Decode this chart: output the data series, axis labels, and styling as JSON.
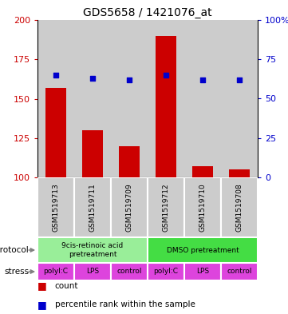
{
  "title": "GDS5658 / 1421076_at",
  "samples": [
    "GSM1519713",
    "GSM1519711",
    "GSM1519709",
    "GSM1519712",
    "GSM1519710",
    "GSM1519708"
  ],
  "bar_values": [
    157,
    130,
    120,
    190,
    107,
    105
  ],
  "bar_base": 100,
  "dot_values": [
    65,
    63,
    62,
    65,
    62,
    62
  ],
  "ylim_left": [
    100,
    200
  ],
  "ylim_right": [
    0,
    100
  ],
  "yticks_left": [
    100,
    125,
    150,
    175,
    200
  ],
  "yticks_right": [
    0,
    25,
    50,
    75,
    100
  ],
  "bar_color": "#cc0000",
  "dot_color": "#0000cc",
  "bar_width": 0.55,
  "protocol_labels": [
    "9cis-retinoic acid\npretreatment",
    "DMSO pretreatment"
  ],
  "protocol_color_1": "#99ee99",
  "protocol_color_2": "#44dd44",
  "stress_labels": [
    "polyI:C",
    "LPS",
    "control",
    "polyI:C",
    "LPS",
    "control"
  ],
  "stress_color": "#dd44dd",
  "sample_bg_color": "#cccccc",
  "grid_color": "#555555",
  "left_axis_color": "#cc0000",
  "right_axis_color": "#0000cc",
  "bg_white": "#ffffff"
}
